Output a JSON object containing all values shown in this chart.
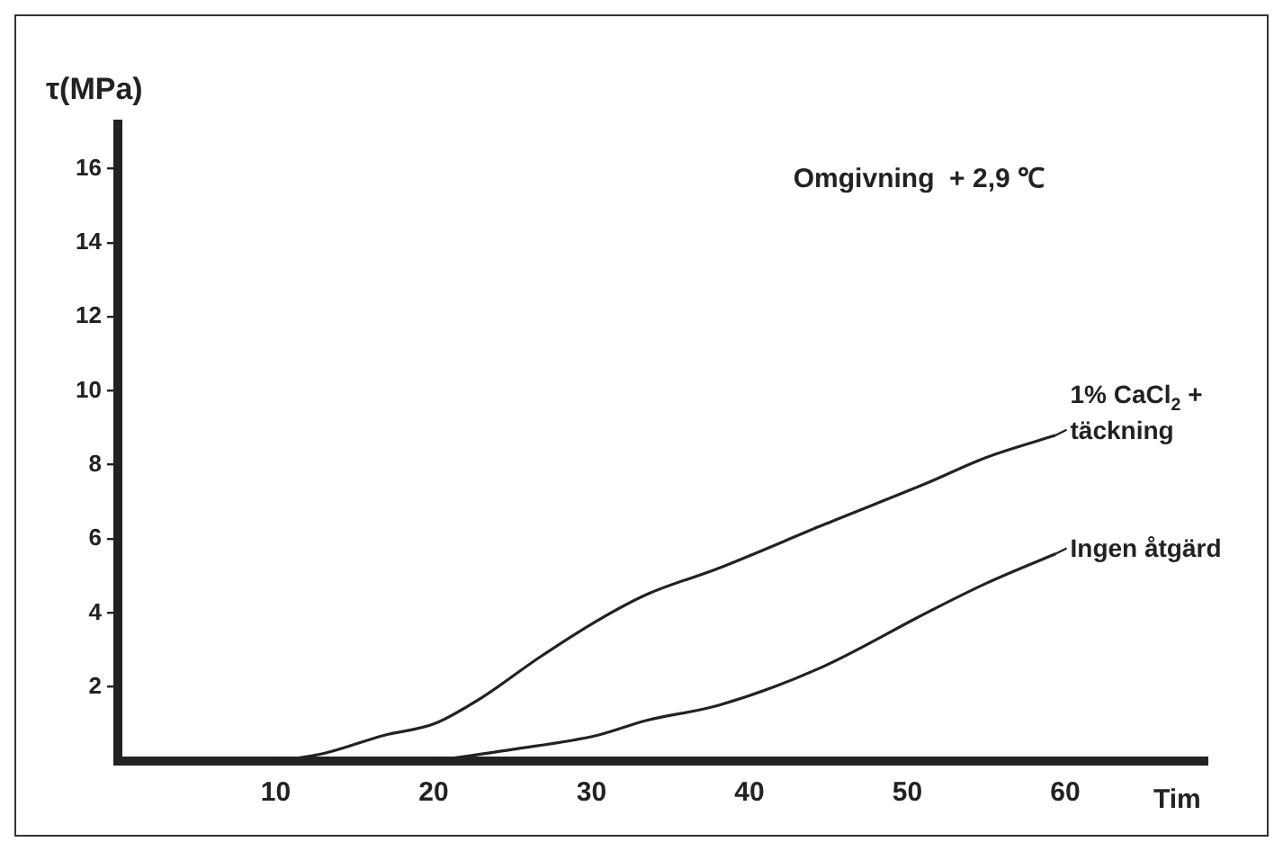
{
  "chart_data": {
    "type": "line",
    "ylabel": "τ(MPa)",
    "xlabel": "Tim",
    "annotations": [
      "Omgivning  + 2,9 ℃"
    ],
    "xlim": [
      0,
      69
    ],
    "ylim": [
      0,
      17.2
    ],
    "xticks": [
      10,
      20,
      30,
      40,
      50,
      60
    ],
    "yticks": [
      2,
      4,
      6,
      8,
      10,
      12,
      14,
      16
    ],
    "grid": false,
    "legend": "right",
    "marker": "none",
    "line_style": "solid",
    "series": [
      {
        "name": "1% CaCl$_{2}$ + täckning",
        "color": "#222222",
        "x": [
          10,
          13,
          16.9,
          20,
          23,
          26.7,
          30.4,
          33.5,
          38,
          44.8,
          51.2,
          55,
          59.4
        ],
        "values": [
          0,
          0.2,
          0.7,
          1.0,
          1.7,
          2.8,
          3.8,
          4.5,
          5.2,
          6.4,
          7.5,
          8.2,
          8.8
        ]
      },
      {
        "name": "Ingen åtgärd",
        "color": "#222222",
        "x": [
          20,
          24.8,
          30.4,
          33.5,
          38,
          44.4,
          51.2,
          55,
          59.4
        ],
        "values": [
          0,
          0.3,
          0.7,
          1.1,
          1.5,
          2.5,
          4.0,
          4.8,
          5.6
        ]
      }
    ]
  }
}
